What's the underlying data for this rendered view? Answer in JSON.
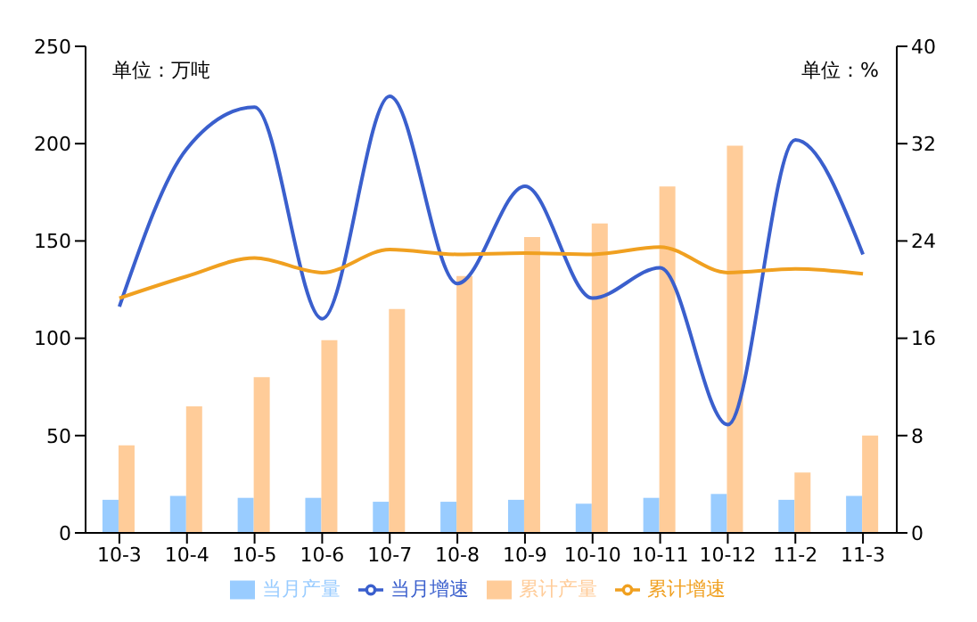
{
  "chart_data": {
    "type": "bar",
    "categories": [
      "10-3",
      "10-4",
      "10-5",
      "10-6",
      "10-7",
      "10-8",
      "10-9",
      "10-10",
      "10-11",
      "10-12",
      "11-2",
      "11-3"
    ],
    "series": [
      {
        "name": "当月产量",
        "color": "#99ccff",
        "values": [
          17,
          19,
          18,
          18,
          16,
          16,
          17,
          15,
          18,
          20,
          17,
          19
        ]
      },
      {
        "name": "累计产量",
        "color": "#ffcc99",
        "values": [
          45,
          65,
          80,
          99,
          115,
          132,
          152,
          159,
          178,
          199,
          31,
          50
        ]
      },
      {
        "name": "当月增速",
        "type": "line",
        "axis": "y2",
        "color": "#3a5fcd",
        "values": [
          18.6,
          31.6,
          35,
          17.6,
          35.9,
          20.5,
          28.5,
          19.3,
          21.8,
          8.9,
          32.3,
          22.9
        ]
      },
      {
        "name": "累计增速",
        "type": "line",
        "axis": "y2",
        "color": "#f0a020",
        "values": [
          19.3,
          21.1,
          22.6,
          21.4,
          23.3,
          22.9,
          23,
          22.9,
          23.5,
          21.4,
          21.7,
          21.3
        ]
      }
    ],
    "ylim": [
      0,
      250
    ],
    "yticks": [
      0,
      50,
      100,
      150,
      200,
      250
    ],
    "y2lim": [
      0,
      40
    ],
    "y2ticks": [
      0,
      8,
      16,
      24,
      32,
      40
    ],
    "annotations": [
      "单位：万吨",
      "单位：%"
    ],
    "grid": false,
    "legend": "bottom",
    "marker": "none",
    "line_style": "solid"
  }
}
